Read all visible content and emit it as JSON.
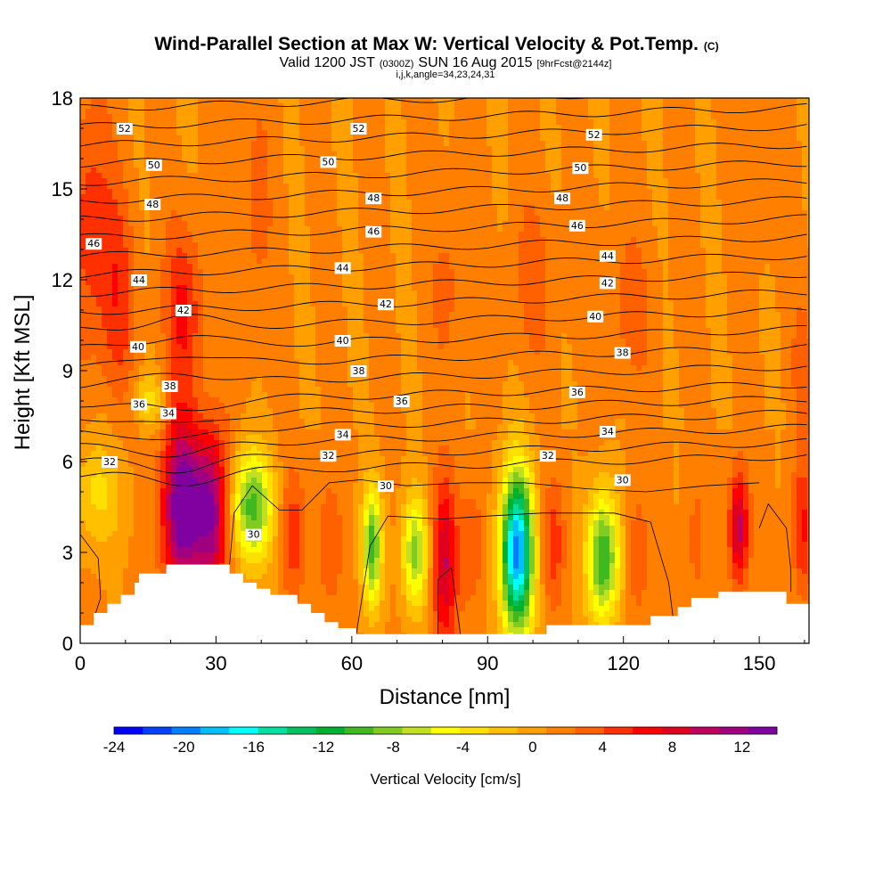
{
  "chart_data": {
    "type": "heatmap",
    "title": "Wind-Parallel Section at Max W: Vertical Velocity & Pot.Temp.",
    "copyright_mark": "(C)",
    "subtitle_parts": [
      "Valid 1200 JST",
      "(0300Z)",
      "SUN 16 Aug 2015",
      "[9hrFcst@2144z]"
    ],
    "subtitle2": "i,j,k,angle=34,23,24,31",
    "xlabel": "Distance [nm]",
    "ylabel": "Height [Kft MSL]",
    "xlim": [
      0,
      161
    ],
    "ylim": [
      0,
      18
    ],
    "x_ticks": [
      0,
      30,
      60,
      90,
      120,
      150
    ],
    "y_ticks": [
      0,
      3,
      6,
      9,
      12,
      15,
      18
    ],
    "colorbar": {
      "label": "Vertical Velocity [cm/s]",
      "min": -24,
      "max": 14,
      "tick_values": [
        -24,
        -20,
        -16,
        -12,
        -8,
        -4,
        0,
        4,
        8,
        12
      ],
      "tick_labels": [
        "-24",
        "-20",
        "-16",
        "-12",
        "-8",
        "-4",
        "0",
        "4",
        "8",
        "12"
      ],
      "colors": [
        "#0000ff",
        "#0040ff",
        "#0080ff",
        "#00c0ff",
        "#00ffff",
        "#00e0a0",
        "#00c060",
        "#00b030",
        "#40b820",
        "#80cc20",
        "#c0e020",
        "#ffff00",
        "#ffe000",
        "#ffc000",
        "#ffa000",
        "#ff8000",
        "#ff6000",
        "#ff3000",
        "#ff0000",
        "#e00020",
        "#c00060",
        "#a00080",
        "#8000a0"
      ]
    },
    "theta_contour_labels": [
      {
        "x": 9.8,
        "y": 17.0,
        "label": "52"
      },
      {
        "x": 61.5,
        "y": 17.0,
        "label": "52"
      },
      {
        "x": 113.5,
        "y": 16.8,
        "label": "52"
      },
      {
        "x": 16.3,
        "y": 15.8,
        "label": "50"
      },
      {
        "x": 54.8,
        "y": 15.9,
        "label": "50"
      },
      {
        "x": 110.5,
        "y": 15.7,
        "label": "50"
      },
      {
        "x": 16.0,
        "y": 14.5,
        "label": "48"
      },
      {
        "x": 64.8,
        "y": 14.7,
        "label": "48"
      },
      {
        "x": 106.5,
        "y": 14.7,
        "label": "48"
      },
      {
        "x": 3.0,
        "y": 13.2,
        "label": "46"
      },
      {
        "x": 64.8,
        "y": 13.6,
        "label": "46"
      },
      {
        "x": 109.8,
        "y": 13.8,
        "label": "46"
      },
      {
        "x": 13.0,
        "y": 12.0,
        "label": "44"
      },
      {
        "x": 58.0,
        "y": 12.4,
        "label": "44"
      },
      {
        "x": 116.5,
        "y": 12.8,
        "label": "44"
      },
      {
        "x": 22.8,
        "y": 11.0,
        "label": "42"
      },
      {
        "x": 67.5,
        "y": 11.2,
        "label": "42"
      },
      {
        "x": 116.5,
        "y": 11.9,
        "label": "42"
      },
      {
        "x": 12.8,
        "y": 9.8,
        "label": "40"
      },
      {
        "x": 58.0,
        "y": 10.0,
        "label": "40"
      },
      {
        "x": 113.8,
        "y": 10.8,
        "label": "40"
      },
      {
        "x": 19.8,
        "y": 8.5,
        "label": "38"
      },
      {
        "x": 61.5,
        "y": 9.0,
        "label": "38"
      },
      {
        "x": 119.8,
        "y": 9.6,
        "label": "38"
      },
      {
        "x": 13.0,
        "y": 7.9,
        "label": "36"
      },
      {
        "x": 71.0,
        "y": 8.0,
        "label": "36"
      },
      {
        "x": 109.8,
        "y": 8.3,
        "label": "36"
      },
      {
        "x": 19.5,
        "y": 7.6,
        "label": "34"
      },
      {
        "x": 58.0,
        "y": 6.9,
        "label": "34"
      },
      {
        "x": 116.5,
        "y": 7.0,
        "label": "34"
      },
      {
        "x": 6.5,
        "y": 6.0,
        "label": "32"
      },
      {
        "x": 54.8,
        "y": 6.2,
        "label": "32"
      },
      {
        "x": 103.3,
        "y": 6.2,
        "label": "32"
      },
      {
        "x": 67.5,
        "y": 5.2,
        "label": "30"
      },
      {
        "x": 119.8,
        "y": 5.4,
        "label": "30"
      },
      {
        "x": 38.3,
        "y": 3.6,
        "label": "30"
      }
    ],
    "theta_contour_levels": [
      30,
      31,
      32,
      33,
      34,
      35,
      36,
      37,
      38,
      39,
      40,
      41,
      42,
      43,
      44,
      45,
      46,
      47,
      48,
      49,
      50,
      51,
      52,
      53
    ],
    "vertical_velocity_cells": [
      {
        "x": 22.5,
        "y": 4.5,
        "w": 14,
        "sx": 3.0,
        "sy": 1.9
      },
      {
        "x": 29.0,
        "y": 4.3,
        "w": 11,
        "sx": 2.6,
        "sy": 1.9
      },
      {
        "x": 38.0,
        "y": 4.5,
        "w": -11,
        "sx": 3.2,
        "sy": 1.3
      },
      {
        "x": 47.0,
        "y": 3.6,
        "w": 4,
        "sx": 2.0,
        "sy": 1.5
      },
      {
        "x": 55.0,
        "y": 3.2,
        "w": 3,
        "sx": 2.0,
        "sy": 1.5
      },
      {
        "x": 64.5,
        "y": 3.2,
        "w": -11,
        "sx": 1.5,
        "sy": 1.4
      },
      {
        "x": 74.0,
        "y": 3.0,
        "w": -9,
        "sx": 2.0,
        "sy": 1.3
      },
      {
        "x": 80.5,
        "y": 2.6,
        "w": 8,
        "sx": 1.9,
        "sy": 2.0
      },
      {
        "x": 86.5,
        "y": 3.2,
        "w": 3,
        "sx": 2.0,
        "sy": 1.5
      },
      {
        "x": 96.5,
        "y": 3.0,
        "w": -21,
        "sx": 2.5,
        "sy": 1.9
      },
      {
        "x": 104.5,
        "y": 3.3,
        "w": 4,
        "sx": 1.8,
        "sy": 1.5
      },
      {
        "x": 115.5,
        "y": 2.8,
        "w": -12,
        "sx": 2.5,
        "sy": 1.5
      },
      {
        "x": 123.0,
        "y": 2.8,
        "w": 3,
        "sx": 1.6,
        "sy": 1.5
      },
      {
        "x": 136.0,
        "y": 3.4,
        "w": 2,
        "sx": 1.4,
        "sy": 1.5
      },
      {
        "x": 145.5,
        "y": 3.8,
        "w": 9,
        "sx": 1.5,
        "sy": 1.3
      },
      {
        "x": 159.5,
        "y": 3.8,
        "w": 5,
        "sx": 1.5,
        "sy": 1.5
      },
      {
        "x": 4.0,
        "y": 5.0,
        "w": -4,
        "sx": 4.0,
        "sy": 1.3
      },
      {
        "x": 2.0,
        "y": 14.0,
        "w": 4,
        "sx": 3.0,
        "sy": 3.0
      },
      {
        "x": 8.0,
        "y": 11.5,
        "w": 4,
        "sx": 3.0,
        "sy": 2.5
      },
      {
        "x": 23.0,
        "y": 11.0,
        "w": 5,
        "sx": 3.0,
        "sy": 2.0
      },
      {
        "x": 15.0,
        "y": 8.0,
        "w": -4,
        "sx": 2.5,
        "sy": 0.6
      },
      {
        "x": 38.0,
        "y": 14.0,
        "w": 2,
        "sx": 3.0,
        "sy": 3.0
      },
      {
        "x": 82.0,
        "y": 12.0,
        "w": 2,
        "sx": 3.0,
        "sy": 2.5
      },
      {
        "x": 100.0,
        "y": 12.0,
        "w": 2,
        "sx": 4.0,
        "sy": 2.0
      },
      {
        "x": 120.0,
        "y": 11.0,
        "w": 2,
        "sx": 5.0,
        "sy": 2.0
      },
      {
        "x": 150.0,
        "y": 16.0,
        "w": 2,
        "sx": 3.0,
        "sy": 2.0
      },
      {
        "x": 160.0,
        "y": 9.0,
        "w": 2,
        "sx": 2.0,
        "sy": 2.0
      }
    ],
    "terrain_profile": [
      [
        0,
        0.6
      ],
      [
        3,
        0.6
      ],
      [
        3,
        1.0
      ],
      [
        6,
        1.0
      ],
      [
        6,
        1.3
      ],
      [
        9,
        1.3
      ],
      [
        9,
        1.6
      ],
      [
        12,
        1.6
      ],
      [
        12,
        2.0
      ],
      [
        13,
        2.0
      ],
      [
        13,
        2.3
      ],
      [
        19,
        2.3
      ],
      [
        19,
        2.6
      ],
      [
        33,
        2.6
      ],
      [
        33,
        2.3
      ],
      [
        36,
        2.3
      ],
      [
        36,
        2.0
      ],
      [
        39,
        2.0
      ],
      [
        39,
        1.8
      ],
      [
        42,
        1.8
      ],
      [
        42,
        1.6
      ],
      [
        48,
        1.6
      ],
      [
        48,
        1.3
      ],
      [
        51,
        1.3
      ],
      [
        51,
        1.0
      ],
      [
        54,
        1.0
      ],
      [
        54,
        0.7
      ],
      [
        57,
        0.7
      ],
      [
        57,
        0.5
      ],
      [
        61,
        0.5
      ],
      [
        61,
        0.3
      ],
      [
        103,
        0.3
      ],
      [
        103,
        0.6
      ],
      [
        112,
        0.6
      ],
      [
        112,
        0.6
      ],
      [
        126,
        0.6
      ],
      [
        126,
        0.9
      ],
      [
        132,
        0.9
      ],
      [
        132,
        1.2
      ],
      [
        135,
        1.2
      ],
      [
        135,
        1.5
      ],
      [
        141,
        1.5
      ],
      [
        141,
        1.7
      ],
      [
        156,
        1.7
      ],
      [
        156,
        1.3
      ],
      [
        161,
        1.3
      ]
    ]
  }
}
